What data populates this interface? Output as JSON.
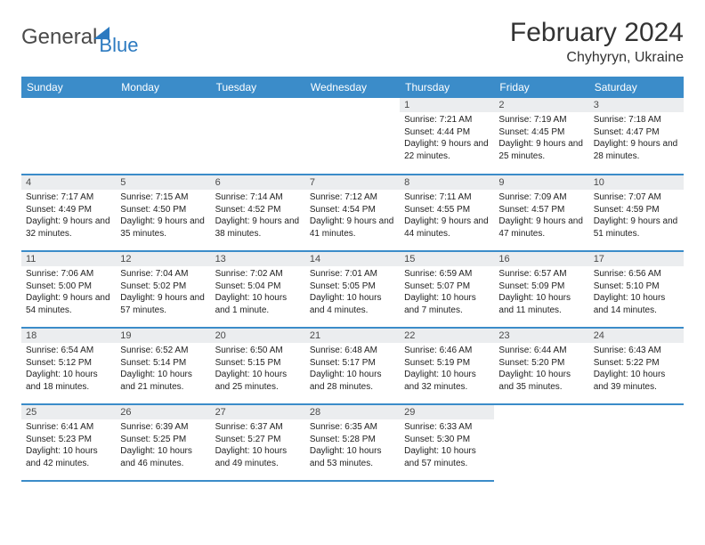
{
  "brand": {
    "name_part1": "General",
    "name_part2": "Blue",
    "text_color": "#4a4a4a",
    "accent_color": "#2c7ac0"
  },
  "title": "February 2024",
  "location": "Chyhyryn, Ukraine",
  "header_bg": "#3b8cc9",
  "header_fg": "#ffffff",
  "daynum_bg": "#ebedef",
  "border_color": "#3b8cc9",
  "daysOfWeek": [
    "Sunday",
    "Monday",
    "Tuesday",
    "Wednesday",
    "Thursday",
    "Friday",
    "Saturday"
  ],
  "weeks": [
    [
      null,
      null,
      null,
      null,
      {
        "day": "1",
        "sunrise": "Sunrise: 7:21 AM",
        "sunset": "Sunset: 4:44 PM",
        "daylight": "Daylight: 9 hours and 22 minutes."
      },
      {
        "day": "2",
        "sunrise": "Sunrise: 7:19 AM",
        "sunset": "Sunset: 4:45 PM",
        "daylight": "Daylight: 9 hours and 25 minutes."
      },
      {
        "day": "3",
        "sunrise": "Sunrise: 7:18 AM",
        "sunset": "Sunset: 4:47 PM",
        "daylight": "Daylight: 9 hours and 28 minutes."
      }
    ],
    [
      {
        "day": "4",
        "sunrise": "Sunrise: 7:17 AM",
        "sunset": "Sunset: 4:49 PM",
        "daylight": "Daylight: 9 hours and 32 minutes."
      },
      {
        "day": "5",
        "sunrise": "Sunrise: 7:15 AM",
        "sunset": "Sunset: 4:50 PM",
        "daylight": "Daylight: 9 hours and 35 minutes."
      },
      {
        "day": "6",
        "sunrise": "Sunrise: 7:14 AM",
        "sunset": "Sunset: 4:52 PM",
        "daylight": "Daylight: 9 hours and 38 minutes."
      },
      {
        "day": "7",
        "sunrise": "Sunrise: 7:12 AM",
        "sunset": "Sunset: 4:54 PM",
        "daylight": "Daylight: 9 hours and 41 minutes."
      },
      {
        "day": "8",
        "sunrise": "Sunrise: 7:11 AM",
        "sunset": "Sunset: 4:55 PM",
        "daylight": "Daylight: 9 hours and 44 minutes."
      },
      {
        "day": "9",
        "sunrise": "Sunrise: 7:09 AM",
        "sunset": "Sunset: 4:57 PM",
        "daylight": "Daylight: 9 hours and 47 minutes."
      },
      {
        "day": "10",
        "sunrise": "Sunrise: 7:07 AM",
        "sunset": "Sunset: 4:59 PM",
        "daylight": "Daylight: 9 hours and 51 minutes."
      }
    ],
    [
      {
        "day": "11",
        "sunrise": "Sunrise: 7:06 AM",
        "sunset": "Sunset: 5:00 PM",
        "daylight": "Daylight: 9 hours and 54 minutes."
      },
      {
        "day": "12",
        "sunrise": "Sunrise: 7:04 AM",
        "sunset": "Sunset: 5:02 PM",
        "daylight": "Daylight: 9 hours and 57 minutes."
      },
      {
        "day": "13",
        "sunrise": "Sunrise: 7:02 AM",
        "sunset": "Sunset: 5:04 PM",
        "daylight": "Daylight: 10 hours and 1 minute."
      },
      {
        "day": "14",
        "sunrise": "Sunrise: 7:01 AM",
        "sunset": "Sunset: 5:05 PM",
        "daylight": "Daylight: 10 hours and 4 minutes."
      },
      {
        "day": "15",
        "sunrise": "Sunrise: 6:59 AM",
        "sunset": "Sunset: 5:07 PM",
        "daylight": "Daylight: 10 hours and 7 minutes."
      },
      {
        "day": "16",
        "sunrise": "Sunrise: 6:57 AM",
        "sunset": "Sunset: 5:09 PM",
        "daylight": "Daylight: 10 hours and 11 minutes."
      },
      {
        "day": "17",
        "sunrise": "Sunrise: 6:56 AM",
        "sunset": "Sunset: 5:10 PM",
        "daylight": "Daylight: 10 hours and 14 minutes."
      }
    ],
    [
      {
        "day": "18",
        "sunrise": "Sunrise: 6:54 AM",
        "sunset": "Sunset: 5:12 PM",
        "daylight": "Daylight: 10 hours and 18 minutes."
      },
      {
        "day": "19",
        "sunrise": "Sunrise: 6:52 AM",
        "sunset": "Sunset: 5:14 PM",
        "daylight": "Daylight: 10 hours and 21 minutes."
      },
      {
        "day": "20",
        "sunrise": "Sunrise: 6:50 AM",
        "sunset": "Sunset: 5:15 PM",
        "daylight": "Daylight: 10 hours and 25 minutes."
      },
      {
        "day": "21",
        "sunrise": "Sunrise: 6:48 AM",
        "sunset": "Sunset: 5:17 PM",
        "daylight": "Daylight: 10 hours and 28 minutes."
      },
      {
        "day": "22",
        "sunrise": "Sunrise: 6:46 AM",
        "sunset": "Sunset: 5:19 PM",
        "daylight": "Daylight: 10 hours and 32 minutes."
      },
      {
        "day": "23",
        "sunrise": "Sunrise: 6:44 AM",
        "sunset": "Sunset: 5:20 PM",
        "daylight": "Daylight: 10 hours and 35 minutes."
      },
      {
        "day": "24",
        "sunrise": "Sunrise: 6:43 AM",
        "sunset": "Sunset: 5:22 PM",
        "daylight": "Daylight: 10 hours and 39 minutes."
      }
    ],
    [
      {
        "day": "25",
        "sunrise": "Sunrise: 6:41 AM",
        "sunset": "Sunset: 5:23 PM",
        "daylight": "Daylight: 10 hours and 42 minutes."
      },
      {
        "day": "26",
        "sunrise": "Sunrise: 6:39 AM",
        "sunset": "Sunset: 5:25 PM",
        "daylight": "Daylight: 10 hours and 46 minutes."
      },
      {
        "day": "27",
        "sunrise": "Sunrise: 6:37 AM",
        "sunset": "Sunset: 5:27 PM",
        "daylight": "Daylight: 10 hours and 49 minutes."
      },
      {
        "day": "28",
        "sunrise": "Sunrise: 6:35 AM",
        "sunset": "Sunset: 5:28 PM",
        "daylight": "Daylight: 10 hours and 53 minutes."
      },
      {
        "day": "29",
        "sunrise": "Sunrise: 6:33 AM",
        "sunset": "Sunset: 5:30 PM",
        "daylight": "Daylight: 10 hours and 57 minutes."
      },
      null,
      null
    ]
  ]
}
